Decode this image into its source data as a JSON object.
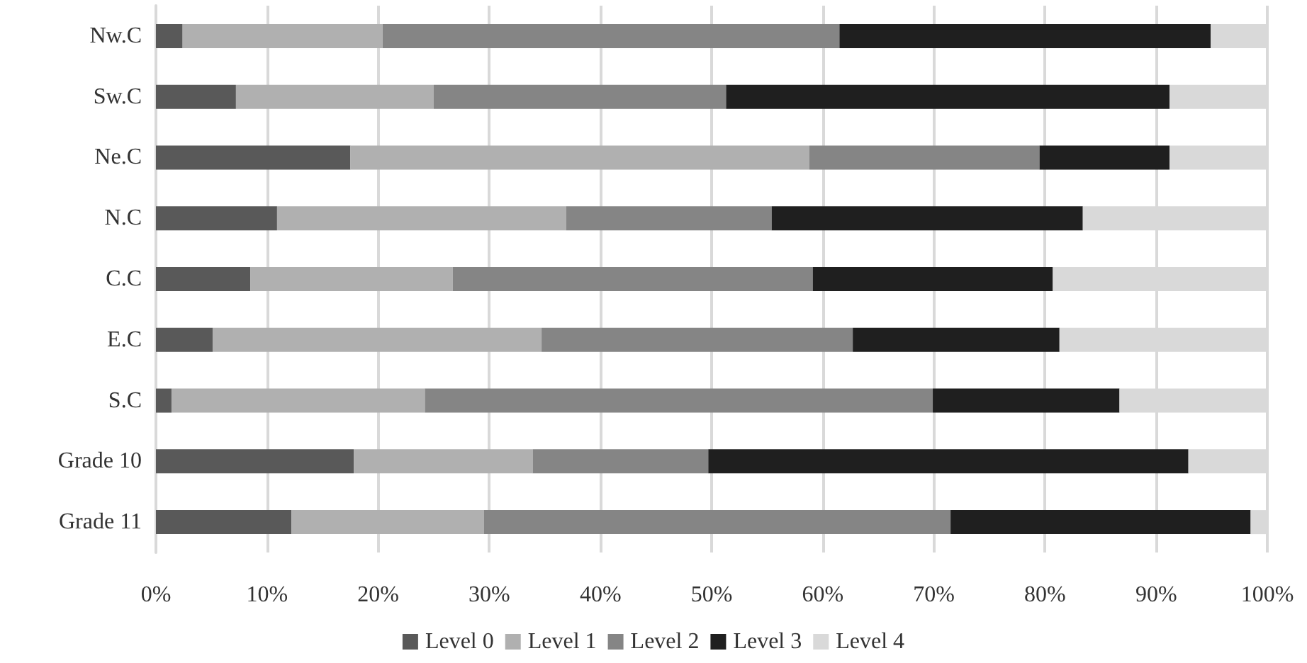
{
  "chart_data": {
    "type": "bar",
    "orientation": "horizontal",
    "stacked": true,
    "categories": [
      "Nw.C",
      "Sw.C",
      "Ne.C",
      "N.C",
      "C.C",
      "E.C",
      "S.C",
      "Grade 10",
      "Grade 11"
    ],
    "series": [
      {
        "name": "Level 0",
        "color": "#595959",
        "values": [
          2.4,
          7.2,
          17.5,
          10.9,
          8.5,
          5.1,
          1.4,
          17.8,
          12.2
        ]
      },
      {
        "name": "Level 1",
        "color": "#b0b0b0",
        "values": [
          18.0,
          17.8,
          41.3,
          26.0,
          18.2,
          29.6,
          22.8,
          16.1,
          17.3
        ]
      },
      {
        "name": "Level 2",
        "color": "#858585",
        "values": [
          41.1,
          26.3,
          20.7,
          18.5,
          32.4,
          28.0,
          45.7,
          15.8,
          42.0
        ]
      },
      {
        "name": "Level 3",
        "color": "#1f1f1f",
        "values": [
          33.4,
          39.9,
          11.7,
          28.0,
          21.6,
          18.6,
          16.8,
          43.2,
          27.0
        ]
      },
      {
        "name": "Level 4",
        "color": "#d9d9d9",
        "values": [
          5.1,
          8.8,
          8.8,
          16.6,
          19.3,
          18.7,
          13.3,
          7.1,
          1.5
        ]
      }
    ],
    "xlim": [
      0,
      100
    ],
    "xticks": [
      {
        "value": 0,
        "label": "0%"
      },
      {
        "value": 10,
        "label": "10%"
      },
      {
        "value": 20,
        "label": "20%"
      },
      {
        "value": 30,
        "label": "30%"
      },
      {
        "value": 40,
        "label": "40%"
      },
      {
        "value": 50,
        "label": "50%"
      },
      {
        "value": 60,
        "label": "60%"
      },
      {
        "value": 70,
        "label": "70%"
      },
      {
        "value": 80,
        "label": "80%"
      },
      {
        "value": 90,
        "label": "90%"
      },
      {
        "value": 100,
        "label": "100%"
      }
    ],
    "grid": "x",
    "legend": "bottom"
  }
}
